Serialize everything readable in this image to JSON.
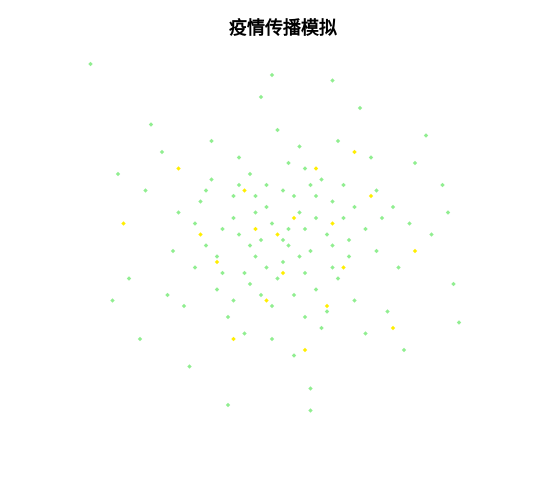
{
  "chart_data": {
    "type": "scatter",
    "title": "疫情传播模拟",
    "xlim": [
      -4,
      4
    ],
    "ylim": [
      -4,
      4
    ],
    "series": [
      {
        "color": "#90ee90",
        "x": [
          0.1,
          -0.5,
          1.2,
          -1.1,
          0.4,
          0.9,
          -0.2,
          -1.6,
          1.7,
          0.0,
          0.6,
          -0.8,
          2.1,
          -2.0,
          0.3,
          -0.4,
          1.0,
          -1.3,
          0.7,
          -0.6,
          1.5,
          -0.1,
          0.2,
          -1.8,
          2.4,
          -2.5,
          0.8,
          -0.9,
          1.3,
          -0.3,
          0.5,
          -1.4,
          1.9,
          -0.7,
          0.0,
          1.1,
          -1.0,
          0.4,
          -2.2,
          2.7,
          -0.2,
          0.9,
          -1.5,
          1.6,
          -0.5,
          0.3,
          -1.2,
          2.0,
          -0.8,
          0.6,
          -3.0,
          3.1,
          -2.8,
          2.9,
          -0.4,
          0.5,
          1.4,
          -1.7,
          2.2,
          -2.4,
          0.2,
          -0.6,
          1.2,
          -1.1,
          0.8,
          -0.3,
          1.7,
          -1.9,
          0.1,
          -0.9,
          1.0,
          -0.2,
          0.4,
          -1.3,
          2.3,
          -2.1,
          0.7,
          -0.5,
          1.5,
          -1.6,
          -3.5,
          3.2,
          -1.0,
          0.5,
          -0.2,
          0.9,
          -3.1,
          3.0,
          -2.6,
          2.6,
          0.0,
          0.3,
          -0.3,
          0.6,
          -0.6,
          0.2,
          -0.1,
          0.9,
          -0.9,
          1.1,
          -1.2,
          1.3,
          -0.4,
          0.4,
          -0.8,
          0.1,
          1.8,
          -1.4,
          0.5,
          -0.7
        ],
        "values": [
          0.2,
          0.8,
          -0.3,
          -0.6,
          1.3,
          0.7,
          -1.2,
          0.3,
          0.9,
          -0.4,
          -0.9,
          1.5,
          -0.5,
          -0.2,
          0.5,
          0.0,
          1.8,
          1.1,
          -1.6,
          -0.8,
          0.2,
          2.0,
          -2.1,
          -1.2,
          1.4,
          0.9,
          0.1,
          0.4,
          -1.1,
          1.0,
          -0.2,
          -0.1,
          -1.3,
          -1.7,
          0.9,
          0.4,
          -1.4,
          -0.6,
          1.6,
          0.1,
          0.3,
          -0.5,
          0.7,
          1.5,
          -0.3,
          1.7,
          -0.9,
          0.6,
          0.1,
          0.8,
          1.2,
          -0.8,
          -0.7,
          1.0,
          2.6,
          -2.7,
          2.4,
          -2.3,
          -2.0,
          2.1,
          -1.0,
          1.2,
          0.0,
          0.2,
          -1.3,
          -0.5,
          -0.2,
          0.5,
          1.4,
          -1.1,
          -0.7,
          -1.8,
          0.2,
          1.8,
          0.3,
          -1.0,
          1.1,
          0.5,
          -1.7,
          -0.5,
          3.2,
          -1.5,
          -3.0,
          -3.1,
          3.0,
          2.9,
          -1.1,
          0.5,
          -1.8,
          1.9,
          0.0,
          -0.3,
          0.6,
          0.4,
          -0.1,
          0.8,
          -0.7,
          -0.1,
          0.8,
          1.0,
          -0.3,
          0.6,
          -1.0,
          -1.4,
          1.0,
          -0.1,
          0.4,
          0.9,
          1.0,
          -0.6
        ]
      },
      {
        "color": "#ffee00",
        "x": [
          0.2,
          -0.7,
          1.1,
          -1.2,
          0.6,
          -0.3,
          1.6,
          -1.5,
          0.8,
          -0.1,
          2.4,
          -2.9,
          0.4,
          -0.9,
          1.3,
          0.0,
          -1.9,
          2.0,
          -0.5,
          0.9
        ],
        "values": [
          0.4,
          0.9,
          -0.5,
          -0.4,
          1.3,
          -1.1,
          0.8,
          0.1,
          -1.2,
          0.1,
          -0.2,
          0.3,
          -2.0,
          -1.8,
          1.6,
          -0.6,
          1.3,
          -1.6,
          0.2,
          0.3
        ]
      }
    ]
  }
}
